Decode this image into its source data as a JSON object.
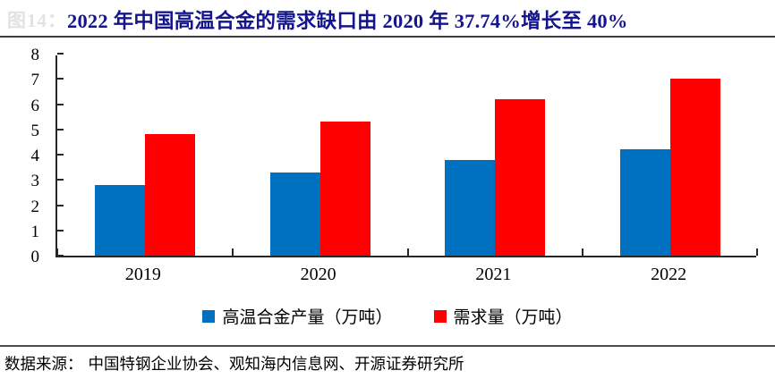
{
  "figure": {
    "label": "图14：",
    "title": "2022 年中国高温合金的需求缺口由 2020 年 37.74%增长至 40%"
  },
  "source": {
    "prefix": "数据来源：",
    "text": "中国特钢企业协会、观知海内信息网、开源证券研究所"
  },
  "colors": {
    "title": "#14148c",
    "axis": "#262626",
    "production_blue": "#0070C0",
    "demand_red": "#FF0000"
  },
  "chart_data": {
    "type": "bar",
    "title": "2022 年中国高温合金的需求缺口由 2020 年 37.74%增长至 40%",
    "categories": [
      "2019",
      "2020",
      "2021",
      "2022"
    ],
    "series": [
      {
        "key": "production",
        "name": "高温合金产量（万吨）",
        "color": "#0070C0",
        "values": [
          2.8,
          3.3,
          3.8,
          4.2
        ]
      },
      {
        "key": "demand",
        "name": "需求量（万吨）",
        "color": "#FF0000",
        "values": [
          4.8,
          5.3,
          6.2,
          7.0
        ]
      }
    ],
    "xlabel": "",
    "ylabel": "",
    "ylim": [
      0,
      8
    ],
    "ytick_step": 1,
    "grid": false,
    "legend_position": "bottom"
  }
}
